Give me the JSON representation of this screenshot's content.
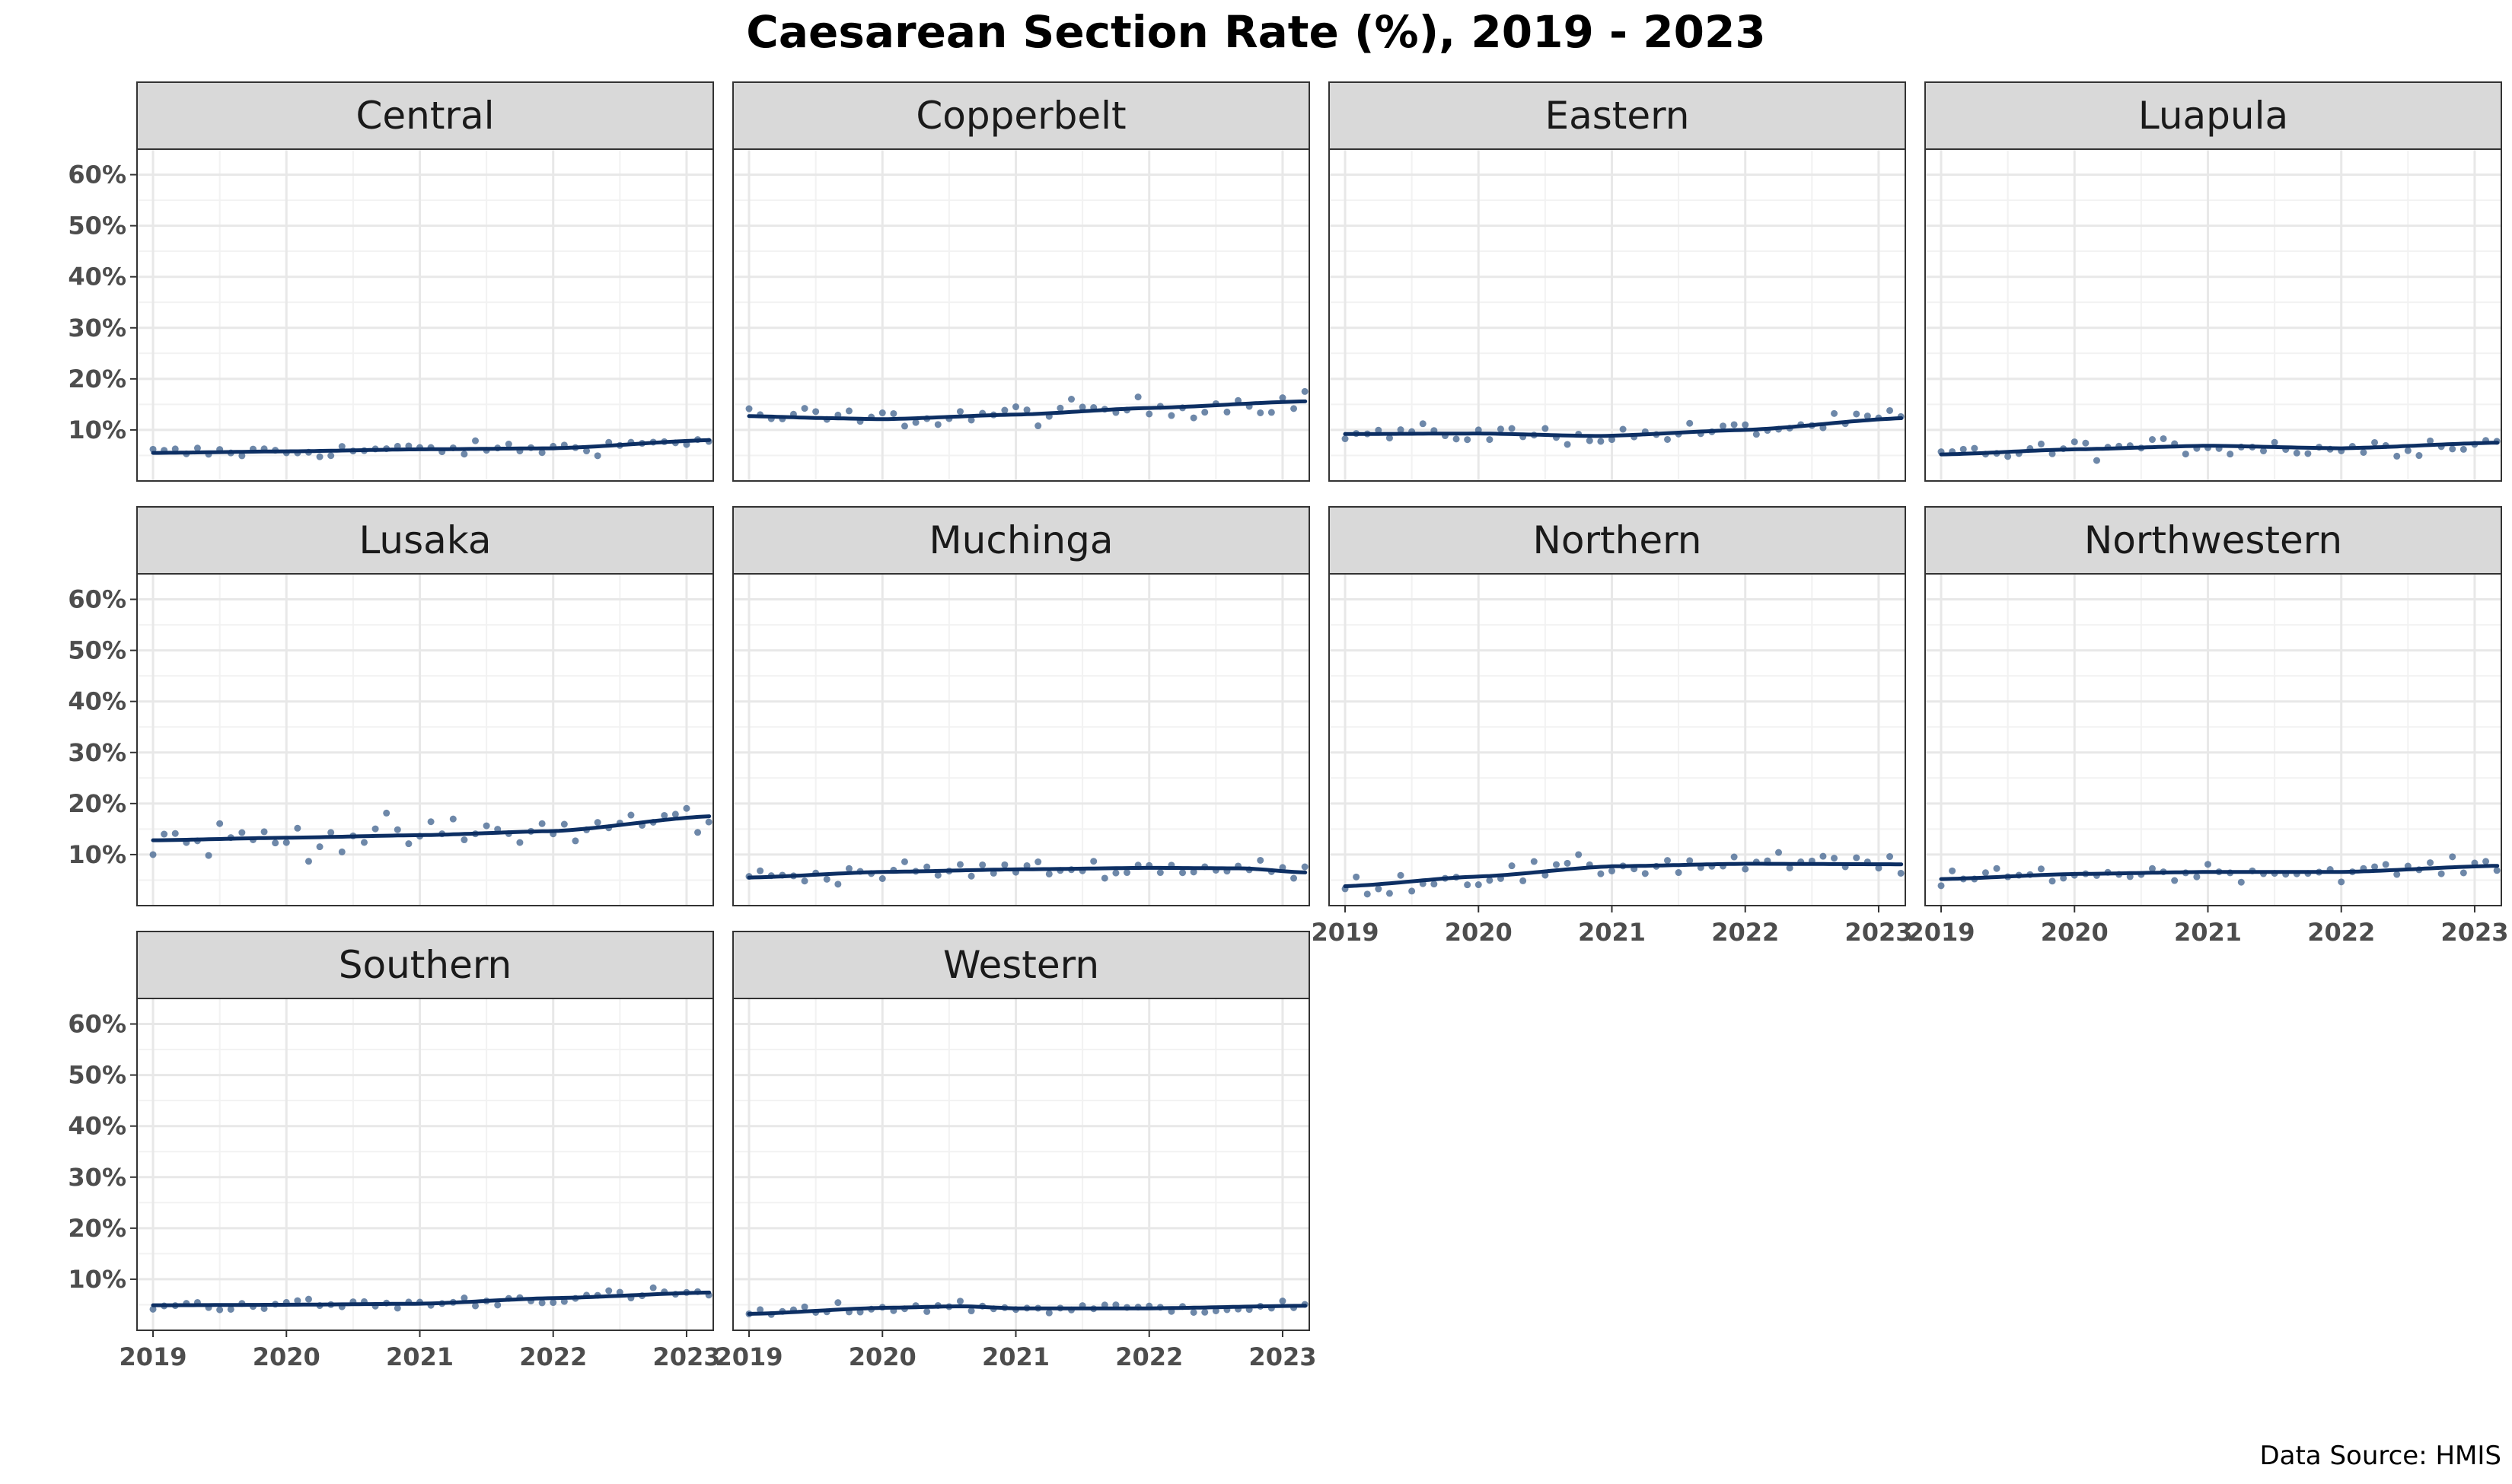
{
  "chart_data": {
    "type": "scatter",
    "title": "Caesarean Section Rate (%), 2019 - 2023",
    "caption": "Data Source: HMIS",
    "x_ticks": [
      "2019",
      "2020",
      "2021",
      "2022",
      "2023"
    ],
    "y_ticks": [
      "10%",
      "20%",
      "30%",
      "40%",
      "50%",
      "60%"
    ],
    "ylim": [
      0,
      0.65
    ],
    "xlim": [
      2018.88,
      2023.2
    ],
    "grid": true,
    "point_color": "#4a6a94",
    "line_color": "#0d2f63",
    "strip_color": "#d9d9d9",
    "panels": [
      {
        "name": "Central",
        "trend": [
          {
            "x": 2019,
            "y": 0.055
          },
          {
            "x": 2020,
            "y": 0.058
          },
          {
            "x": 2021,
            "y": 0.062
          },
          {
            "x": 2022,
            "y": 0.064
          },
          {
            "x": 2023.17,
            "y": 0.08
          }
        ],
        "noise": 0.007
      },
      {
        "name": "Copperbelt",
        "trend": [
          {
            "x": 2019,
            "y": 0.127
          },
          {
            "x": 2019.6,
            "y": 0.123
          },
          {
            "x": 2020,
            "y": 0.121
          },
          {
            "x": 2021,
            "y": 0.13
          },
          {
            "x": 2022,
            "y": 0.143
          },
          {
            "x": 2023.17,
            "y": 0.156
          }
        ],
        "noise": 0.011
      },
      {
        "name": "Eastern",
        "trend": [
          {
            "x": 2019,
            "y": 0.092
          },
          {
            "x": 2020,
            "y": 0.093
          },
          {
            "x": 2020.9,
            "y": 0.088
          },
          {
            "x": 2022,
            "y": 0.1
          },
          {
            "x": 2023.17,
            "y": 0.123
          }
        ],
        "noise": 0.009
      },
      {
        "name": "Luapula",
        "trend": [
          {
            "x": 2019,
            "y": 0.052
          },
          {
            "x": 2020,
            "y": 0.062
          },
          {
            "x": 2021,
            "y": 0.069
          },
          {
            "x": 2022,
            "y": 0.064
          },
          {
            "x": 2023.17,
            "y": 0.075
          }
        ],
        "noise": 0.009
      },
      {
        "name": "Lusaka",
        "trend": [
          {
            "x": 2019,
            "y": 0.128
          },
          {
            "x": 2020,
            "y": 0.133
          },
          {
            "x": 2021,
            "y": 0.138
          },
          {
            "x": 2022,
            "y": 0.146
          },
          {
            "x": 2023.17,
            "y": 0.175
          }
        ],
        "noise": 0.018
      },
      {
        "name": "Muchinga",
        "trend": [
          {
            "x": 2019,
            "y": 0.055
          },
          {
            "x": 2020,
            "y": 0.066
          },
          {
            "x": 2021,
            "y": 0.071
          },
          {
            "x": 2022,
            "y": 0.074
          },
          {
            "x": 2022.7,
            "y": 0.073
          },
          {
            "x": 2023.17,
            "y": 0.065
          }
        ],
        "noise": 0.009
      },
      {
        "name": "Northern",
        "trend": [
          {
            "x": 2019,
            "y": 0.038
          },
          {
            "x": 2020,
            "y": 0.057
          },
          {
            "x": 2021,
            "y": 0.077
          },
          {
            "x": 2022,
            "y": 0.082
          },
          {
            "x": 2023.17,
            "y": 0.081
          }
        ],
        "noise": 0.011
      },
      {
        "name": "Northwestern",
        "trend": [
          {
            "x": 2019,
            "y": 0.052
          },
          {
            "x": 2020,
            "y": 0.062
          },
          {
            "x": 2021,
            "y": 0.066
          },
          {
            "x": 2022,
            "y": 0.066
          },
          {
            "x": 2023.17,
            "y": 0.078
          }
        ],
        "noise": 0.008
      },
      {
        "name": "Southern",
        "trend": [
          {
            "x": 2019,
            "y": 0.049
          },
          {
            "x": 2020,
            "y": 0.05
          },
          {
            "x": 2021,
            "y": 0.052
          },
          {
            "x": 2022,
            "y": 0.063
          },
          {
            "x": 2023.17,
            "y": 0.074
          }
        ],
        "noise": 0.006
      },
      {
        "name": "Western",
        "trend": [
          {
            "x": 2019,
            "y": 0.032
          },
          {
            "x": 2020,
            "y": 0.044
          },
          {
            "x": 2020.6,
            "y": 0.047
          },
          {
            "x": 2021,
            "y": 0.043
          },
          {
            "x": 2022,
            "y": 0.043
          },
          {
            "x": 2023.17,
            "y": 0.048
          }
        ],
        "noise": 0.006
      }
    ]
  }
}
